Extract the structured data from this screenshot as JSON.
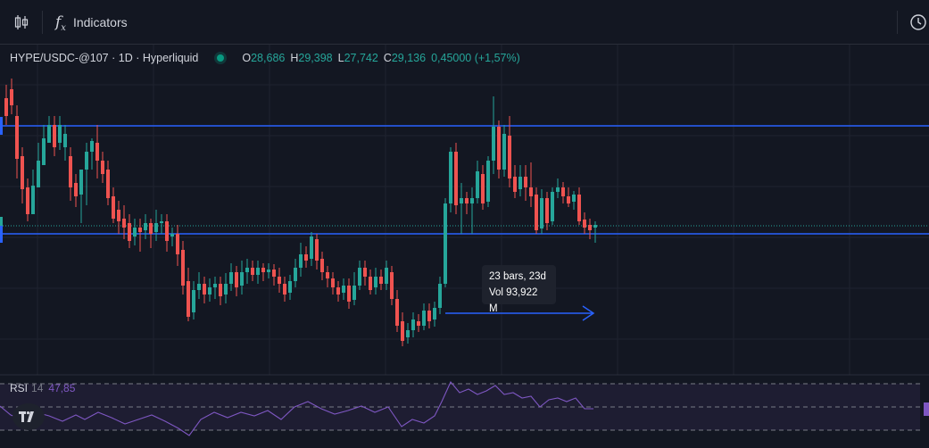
{
  "toolbar": {
    "indicators_label": "Indicators",
    "fx_symbol": "f",
    "fx_sub": "x"
  },
  "legend": {
    "symbol": "HYPE/USDC-@107 · 1D · Hyperliquid",
    "open_key": "O",
    "open": "28,686",
    "high_key": "H",
    "high": "29,398",
    "low_key": "L",
    "low": "27,742",
    "close_key": "C",
    "close": "29,136",
    "change": "0,45000 (+1,57%)"
  },
  "rsi": {
    "name": "RSI",
    "period": "14",
    "value": "47,85"
  },
  "measure_tooltip": {
    "bars_line": "23 bars, 23d",
    "vol_line": "Vol 93,922 M"
  },
  "colors": {
    "background": "#131722",
    "up": "#26a69a",
    "down": "#ef5350",
    "hline": "#2962ff",
    "rsi_line": "#7e57c2"
  },
  "icons": [
    "candles-icon",
    "fx-icon",
    "alert-clock-icon",
    "tradingview-logo-icon",
    "arrow-right-icon"
  ]
}
